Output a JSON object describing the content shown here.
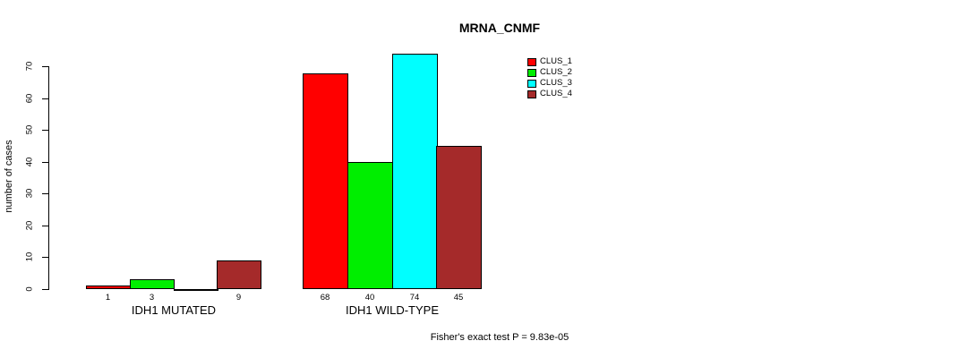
{
  "chart_data": {
    "type": "bar",
    "title": "MRNA_CNMF",
    "ylabel": "number of cases",
    "xlabel": "",
    "ylim": [
      0,
      70
    ],
    "yticks": [
      0,
      10,
      20,
      30,
      40,
      50,
      60,
      70
    ],
    "grid": false,
    "legend_position": "top-right",
    "annotation": "Fisher's exact test P = 9.83e-05",
    "categories": [
      "IDH1 MUTATED",
      "IDH1 WILD-TYPE"
    ],
    "series": [
      {
        "name": "CLUS_1",
        "color": "#FF0000",
        "values": [
          1,
          68
        ],
        "value_labels": [
          "1",
          "68"
        ]
      },
      {
        "name": "CLUS_2",
        "color": "#00EE00",
        "values": [
          3,
          40
        ],
        "value_labels": [
          "3",
          "40"
        ]
      },
      {
        "name": "CLUS_3",
        "color": "#00FFFF",
        "values": [
          0,
          74
        ],
        "value_labels": [
          "",
          "74"
        ]
      },
      {
        "name": "CLUS_4",
        "color": "#A52A2A",
        "values": [
          9,
          45
        ],
        "value_labels": [
          "9",
          "45"
        ]
      }
    ]
  }
}
